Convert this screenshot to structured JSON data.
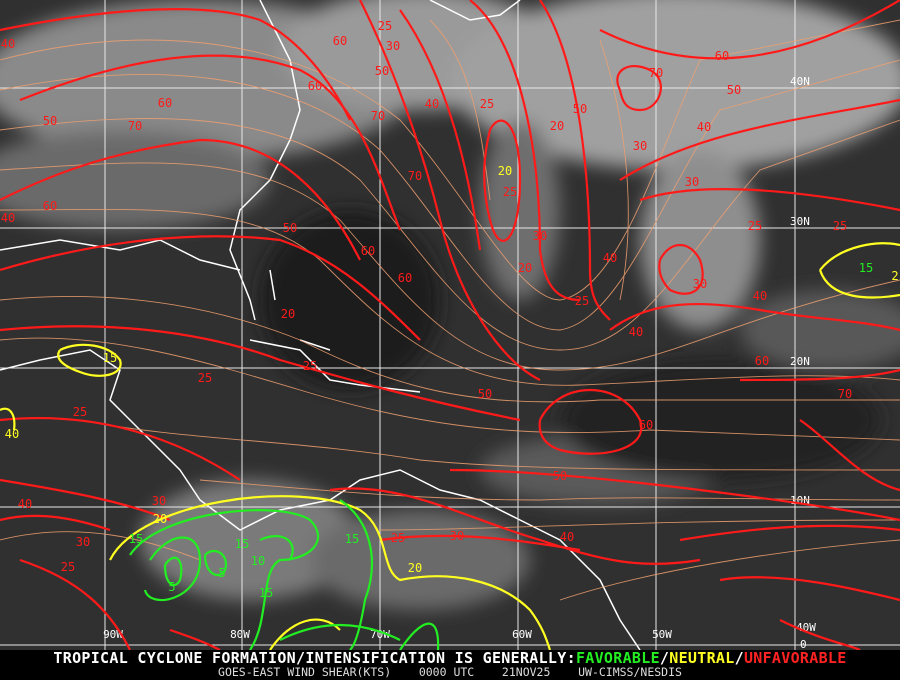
{
  "footer": {
    "headline": "TROPICAL CYCLONE FORMATION/INTENSIFICATION IS GENERALLY:",
    "favorable": "FAVORABLE",
    "sep1": "/",
    "neutral": "NEUTRAL",
    "sep2": "/",
    "unfavorable": "UNFAVORABLE",
    "product": "GOES-EAST WIND SHEAR(KTS)",
    "time": "0000 UTC",
    "date": "21NOV25",
    "source": "UW-CIMSS/NESDIS"
  },
  "grid": {
    "longitudes": [
      "90W",
      "80W",
      "70W",
      "60W",
      "50W",
      "40W"
    ],
    "latitudes": [
      "40N",
      "30N",
      "20N",
      "10N",
      "0"
    ]
  },
  "colors": {
    "favorable": "#22ee22",
    "neutral": "#ffff22",
    "unfavorable": "#ff1a1a",
    "streamline": "#f0a070",
    "coast": "#ffffff"
  },
  "contour_labels": [
    "40",
    "70",
    "60",
    "25",
    "30",
    "50",
    "60",
    "40",
    "25",
    "70",
    "60",
    "40",
    "50",
    "60",
    "70",
    "30",
    "20",
    "25",
    "30",
    "40",
    "60",
    "50",
    "25",
    "50",
    "20",
    "20",
    "15",
    "40",
    "25",
    "25",
    "20",
    "25",
    "40",
    "30",
    "25",
    "30",
    "50",
    "40",
    "30",
    "20",
    "25",
    "50",
    "60",
    "40",
    "50",
    "60",
    "70",
    "40",
    "70",
    "60",
    "25",
    "25",
    "15",
    "2",
    "20",
    "15",
    "15",
    "15",
    "5",
    "5",
    "10",
    "15",
    "30",
    "40",
    "60",
    "30"
  ]
}
